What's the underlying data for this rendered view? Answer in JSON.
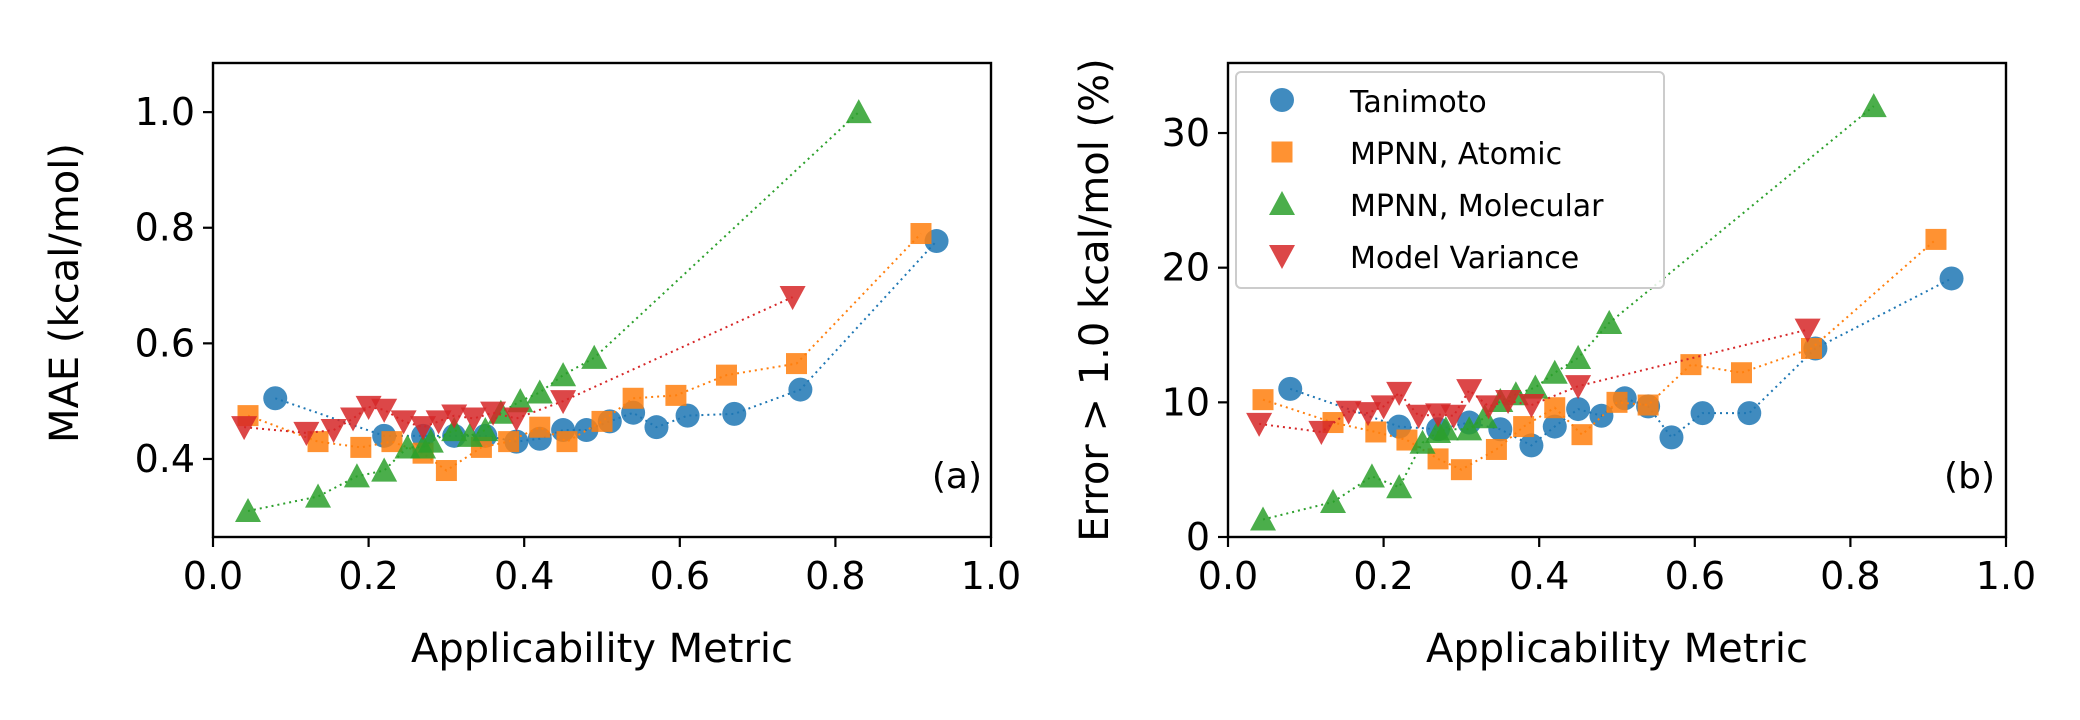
{
  "chart_data": [
    {
      "type": "scatter",
      "panel_label": "(a)",
      "xlabel": "Applicability Metric",
      "ylabel": "MAE (kcal/mol)",
      "xlim": [
        0.0,
        1.0
      ],
      "ylim": [
        0.265,
        1.085
      ],
      "xticks": [
        0.0,
        0.2,
        0.4,
        0.6,
        0.8,
        1.0
      ],
      "xtick_labels": [
        "0.0",
        "0.2",
        "0.4",
        "0.6",
        "0.8",
        "1.0"
      ],
      "yticks": [
        0.4,
        0.6,
        0.8,
        1.0
      ],
      "ytick_labels": [
        "0.4",
        "0.6",
        "0.8",
        "1.0"
      ],
      "grid": false,
      "series": [
        {
          "name": "Tanimoto",
          "x": [
            0.08,
            0.22,
            0.27,
            0.31,
            0.35,
            0.39,
            0.42,
            0.45,
            0.48,
            0.51,
            0.54,
            0.57,
            0.61,
            0.67,
            0.755,
            0.93
          ],
          "y": [
            0.505,
            0.44,
            0.44,
            0.44,
            0.44,
            0.43,
            0.435,
            0.45,
            0.45,
            0.465,
            0.48,
            0.455,
            0.475,
            0.478,
            0.52,
            0.777
          ]
        },
        {
          "name": "MPNN, Atomic",
          "x": [
            0.045,
            0.135,
            0.19,
            0.23,
            0.27,
            0.3,
            0.345,
            0.38,
            0.42,
            0.455,
            0.5,
            0.54,
            0.595,
            0.66,
            0.75,
            0.91
          ],
          "y": [
            0.475,
            0.43,
            0.42,
            0.43,
            0.41,
            0.38,
            0.42,
            0.43,
            0.455,
            0.43,
            0.465,
            0.505,
            0.51,
            0.545,
            0.565,
            0.79
          ]
        },
        {
          "name": "MPNN, Molecular",
          "x": [
            0.045,
            0.135,
            0.185,
            0.22,
            0.25,
            0.27,
            0.28,
            0.31,
            0.33,
            0.35,
            0.37,
            0.395,
            0.42,
            0.45,
            0.49,
            0.83
          ],
          "y": [
            0.31,
            0.335,
            0.37,
            0.38,
            0.42,
            0.42,
            0.43,
            0.45,
            0.44,
            0.45,
            0.48,
            0.5,
            0.515,
            0.545,
            0.575,
            1.0
          ]
        },
        {
          "name": "Model Variance",
          "x": [
            0.04,
            0.12,
            0.155,
            0.18,
            0.2,
            0.22,
            0.245,
            0.27,
            0.29,
            0.31,
            0.335,
            0.36,
            0.39,
            0.45,
            0.745
          ],
          "y": [
            0.455,
            0.445,
            0.45,
            0.47,
            0.49,
            0.485,
            0.465,
            0.455,
            0.465,
            0.475,
            0.47,
            0.48,
            0.47,
            0.5,
            0.68
          ]
        }
      ]
    },
    {
      "type": "scatter",
      "panel_label": "(b)",
      "xlabel": "Applicability Metric",
      "ylabel": "Error > 1.0 kcal/mol (%)",
      "xlim": [
        0.0,
        1.0
      ],
      "ylim": [
        0.0,
        35.2
      ],
      "xticks": [
        0.0,
        0.2,
        0.4,
        0.6,
        0.8,
        1.0
      ],
      "xtick_labels": [
        "0.0",
        "0.2",
        "0.4",
        "0.6",
        "0.8",
        "1.0"
      ],
      "yticks": [
        0,
        10,
        20,
        30
      ],
      "ytick_labels": [
        "0",
        "10",
        "20",
        "30"
      ],
      "grid": false,
      "legend_position": "upper-left",
      "series": [
        {
          "name": "Tanimoto",
          "x": [
            0.08,
            0.22,
            0.27,
            0.31,
            0.35,
            0.39,
            0.42,
            0.45,
            0.48,
            0.51,
            0.54,
            0.57,
            0.61,
            0.67,
            0.755,
            0.93
          ],
          "y": [
            11.0,
            8.2,
            8.0,
            8.5,
            8.0,
            6.8,
            8.2,
            9.5,
            9.0,
            10.3,
            9.7,
            7.4,
            9.2,
            9.2,
            14.0,
            19.2
          ]
        },
        {
          "name": "MPNN, Atomic",
          "x": [
            0.045,
            0.135,
            0.19,
            0.23,
            0.27,
            0.3,
            0.345,
            0.38,
            0.42,
            0.455,
            0.5,
            0.54,
            0.595,
            0.66,
            0.75,
            0.91
          ],
          "y": [
            10.2,
            8.5,
            7.8,
            7.2,
            5.8,
            5.0,
            6.5,
            8.2,
            9.6,
            7.6,
            10.0,
            9.8,
            12.8,
            12.2,
            14.0,
            22.1
          ]
        },
        {
          "name": "MPNN, Molecular",
          "x": [
            0.045,
            0.135,
            0.185,
            0.22,
            0.25,
            0.27,
            0.28,
            0.31,
            0.33,
            0.35,
            0.37,
            0.395,
            0.42,
            0.45,
            0.49,
            0.83
          ],
          "y": [
            1.3,
            2.6,
            4.5,
            3.7,
            7.0,
            7.8,
            8.0,
            8.0,
            8.9,
            10.1,
            10.6,
            11.1,
            12.2,
            13.3,
            15.9,
            32.0
          ]
        },
        {
          "name": "Model Variance",
          "x": [
            0.04,
            0.12,
            0.155,
            0.18,
            0.2,
            0.22,
            0.245,
            0.27,
            0.29,
            0.31,
            0.335,
            0.36,
            0.39,
            0.45,
            0.745
          ],
          "y": [
            8.4,
            7.8,
            9.3,
            9.2,
            9.7,
            10.7,
            9.0,
            9.1,
            9.0,
            10.9,
            9.7,
            10.1,
            9.8,
            11.2,
            15.4
          ]
        }
      ]
    }
  ],
  "legend": {
    "entries": [
      "Tanimoto",
      "MPNN, Atomic",
      "MPNN, Molecular",
      "Model Variance"
    ]
  },
  "style": {
    "colors": {
      "Tanimoto": "#1f77b4",
      "MPNN, Atomic": "#ff7f0e",
      "MPNN, Molecular": "#2ca02c",
      "Model Variance": "#d62728"
    },
    "markers": {
      "Tanimoto": "circle",
      "MPNN, Atomic": "square",
      "MPNN, Molecular": "triangle-up",
      "Model Variance": "triangle-down"
    },
    "line_style": "dotted"
  }
}
